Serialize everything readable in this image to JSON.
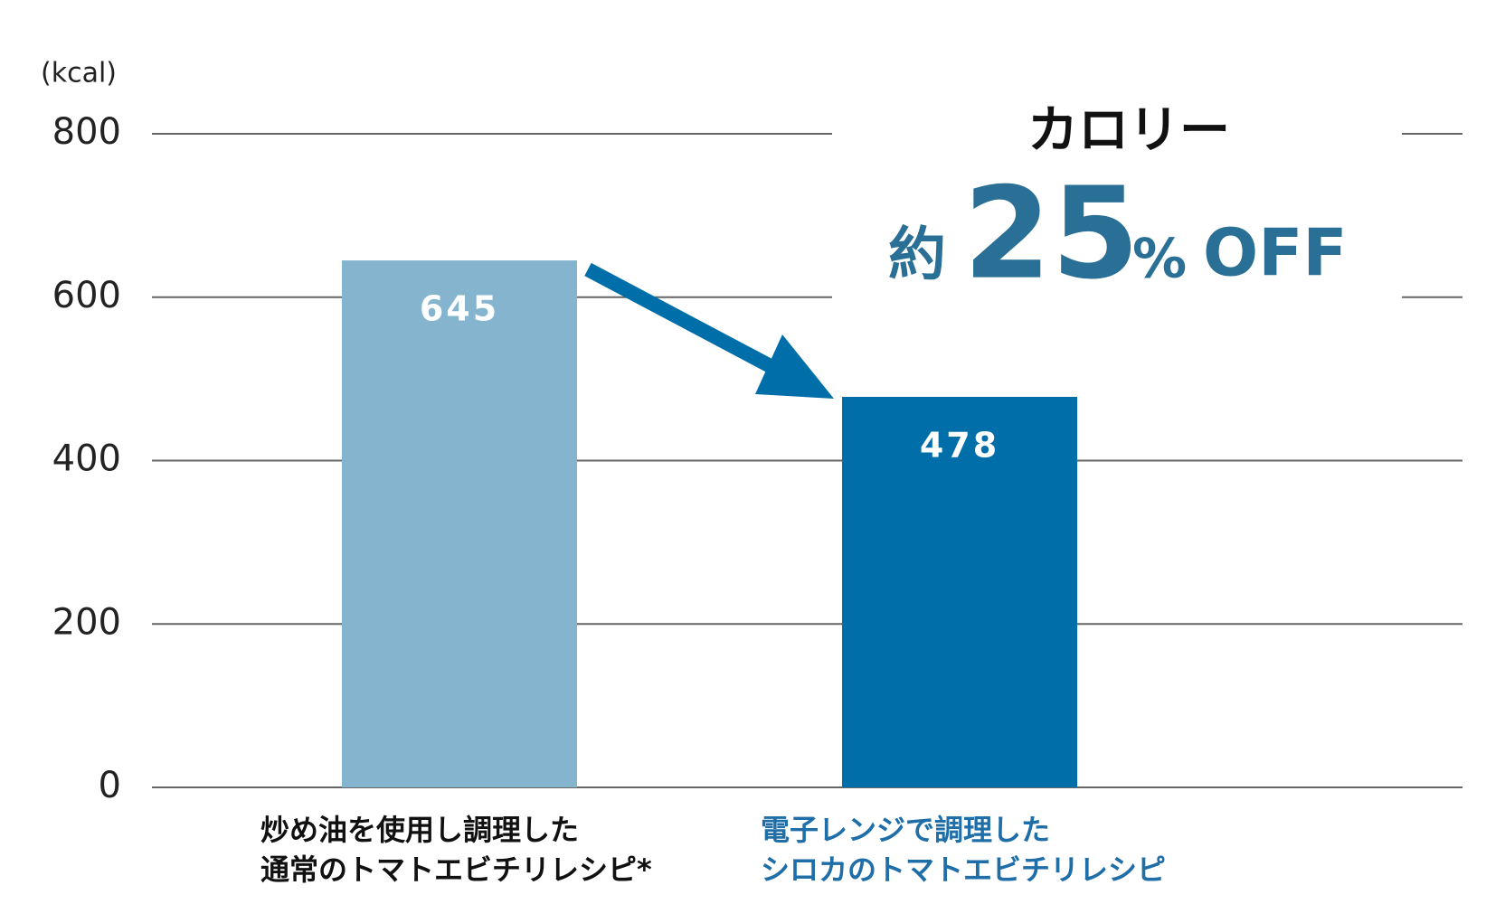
{
  "chart_data": {
    "type": "bar",
    "unit_label": "(kcal)",
    "categories": [
      [
        "炒め油を使用し調理した",
        "通常のトマトエビチリレシピ*"
      ],
      [
        "電子レンジで調理した",
        "シロカのトマトエビチリレシピ"
      ]
    ],
    "category_colors": [
      "#111111",
      "#1f6ea8"
    ],
    "values": [
      645,
      478
    ],
    "colors": [
      "#85b4cf",
      "#006ea8"
    ],
    "ylim": [
      0,
      800
    ],
    "yticks": [
      0,
      200,
      400,
      600,
      800
    ],
    "grid": true,
    "annotation": {
      "title": "カロリー",
      "prefix": "約",
      "number": "25",
      "percent": "%",
      "off": "OFF"
    }
  }
}
